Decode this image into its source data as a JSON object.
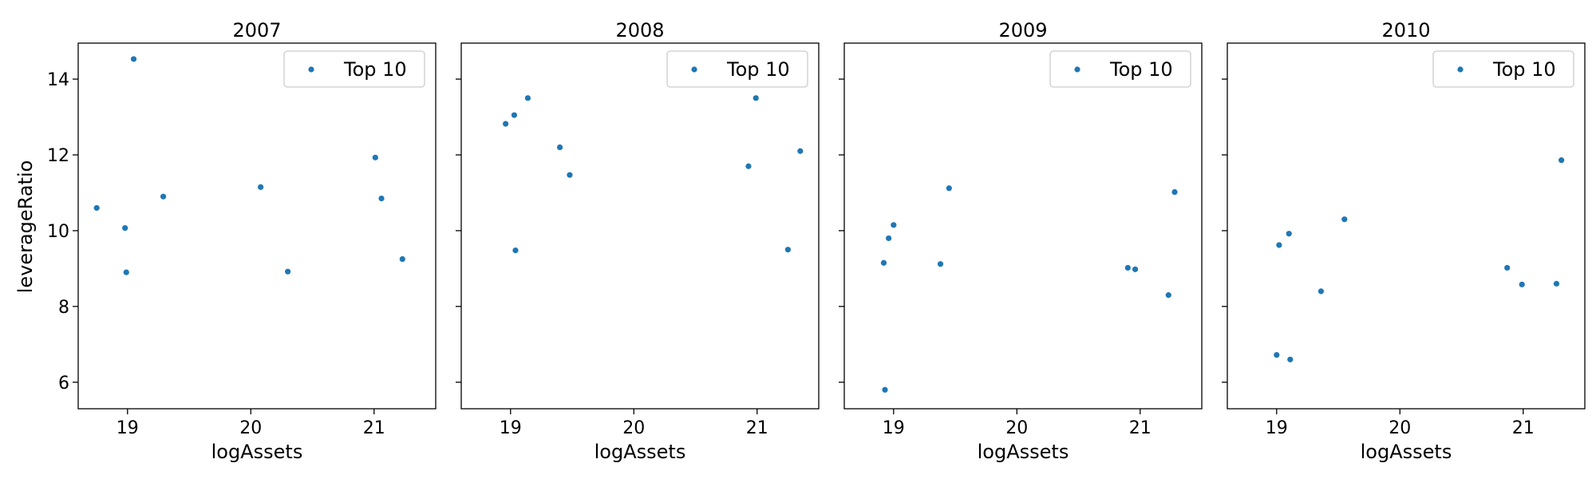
{
  "figure": {
    "ylabel": "leverageRatio",
    "xlabel": "logAssets",
    "marker_color": "#1f77b4"
  },
  "chart_data": [
    {
      "type": "scatter",
      "title": "2007",
      "xlabel": "logAssets",
      "ylabel": "leverageRatio",
      "xlim": [
        18.6,
        21.5
      ],
      "ylim": [
        5.3,
        14.95
      ],
      "xticks": [
        19,
        20,
        21
      ],
      "yticks": [
        6,
        8,
        10,
        12,
        14
      ],
      "legend": "upper right",
      "series": [
        {
          "name": "Top 10",
          "points": [
            [
              18.75,
              10.6
            ],
            [
              18.98,
              10.07
            ],
            [
              18.99,
              8.9
            ],
            [
              19.05,
              14.53
            ],
            [
              19.29,
              10.9
            ],
            [
              20.08,
              11.15
            ],
            [
              20.3,
              8.92
            ],
            [
              21.01,
              11.93
            ],
            [
              21.06,
              10.85
            ],
            [
              21.23,
              9.25
            ]
          ]
        }
      ]
    },
    {
      "type": "scatter",
      "title": "2008",
      "xlabel": "logAssets",
      "ylabel": "",
      "xlim": [
        18.6,
        21.5
      ],
      "ylim": [
        5.3,
        14.95
      ],
      "xticks": [
        19,
        20,
        21
      ],
      "yticks": [
        6,
        8,
        10,
        12,
        14
      ],
      "legend": "upper right",
      "series": [
        {
          "name": "Top 10",
          "points": [
            [
              18.96,
              12.82
            ],
            [
              19.03,
              13.05
            ],
            [
              19.04,
              9.48
            ],
            [
              19.14,
              13.5
            ],
            [
              19.4,
              12.2
            ],
            [
              19.48,
              11.47
            ],
            [
              20.93,
              11.7
            ],
            [
              20.99,
              13.5
            ],
            [
              21.25,
              9.5
            ],
            [
              21.35,
              12.1
            ]
          ]
        }
      ]
    },
    {
      "type": "scatter",
      "title": "2009",
      "xlabel": "logAssets",
      "ylabel": "",
      "xlim": [
        18.6,
        21.5
      ],
      "ylim": [
        5.3,
        14.95
      ],
      "xticks": [
        19,
        20,
        21
      ],
      "yticks": [
        6,
        8,
        10,
        12,
        14
      ],
      "legend": "upper right",
      "series": [
        {
          "name": "Top 10",
          "points": [
            [
              18.92,
              9.15
            ],
            [
              18.93,
              5.8
            ],
            [
              18.96,
              9.8
            ],
            [
              19.0,
              10.15
            ],
            [
              19.38,
              9.12
            ],
            [
              19.45,
              11.12
            ],
            [
              20.9,
              9.02
            ],
            [
              20.96,
              8.98
            ],
            [
              21.23,
              8.3
            ],
            [
              21.28,
              11.02
            ]
          ]
        }
      ]
    },
    {
      "type": "scatter",
      "title": "2010",
      "xlabel": "logAssets",
      "ylabel": "",
      "xlim": [
        18.6,
        21.5
      ],
      "ylim": [
        5.3,
        14.95
      ],
      "xticks": [
        19,
        20,
        21
      ],
      "yticks": [
        6,
        8,
        10,
        12,
        14
      ],
      "legend": "upper right",
      "series": [
        {
          "name": "Top 10",
          "points": [
            [
              19.0,
              6.72
            ],
            [
              19.02,
              9.62
            ],
            [
              19.1,
              9.92
            ],
            [
              19.11,
              6.6
            ],
            [
              19.36,
              8.4
            ],
            [
              19.55,
              10.3
            ],
            [
              20.87,
              9.02
            ],
            [
              20.99,
              8.58
            ],
            [
              21.27,
              8.6
            ],
            [
              21.31,
              11.86
            ]
          ]
        }
      ]
    }
  ]
}
